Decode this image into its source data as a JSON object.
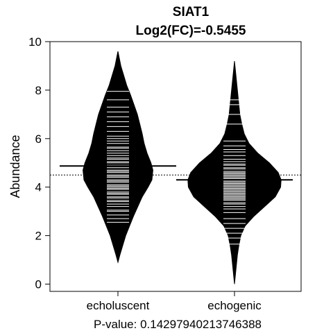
{
  "chart_data": {
    "type": "beanplot",
    "title": "SIAT1",
    "subtitle": "Log2(FC)=-0.5455",
    "xlabel": "",
    "ylabel": "Abundance",
    "ylim": [
      -0.3,
      10
    ],
    "yticks": [
      0,
      2,
      4,
      6,
      8,
      10
    ],
    "categories": [
      "echoluscent",
      "echogenic"
    ],
    "overall_mean": 4.5,
    "grid": false,
    "footer": "P-value: 0.14297940213746388",
    "beans": [
      {
        "name": "echoluscent",
        "mean": 4.87,
        "range": [
          0.9,
          9.6
        ],
        "density_profile": [
          [
            0.9,
            0.0
          ],
          [
            1.2,
            0.04
          ],
          [
            1.6,
            0.1
          ],
          [
            2.0,
            0.16
          ],
          [
            2.4,
            0.24
          ],
          [
            2.8,
            0.32
          ],
          [
            3.2,
            0.41
          ],
          [
            3.6,
            0.5
          ],
          [
            4.0,
            0.62
          ],
          [
            4.3,
            0.7
          ],
          [
            4.7,
            0.72
          ],
          [
            5.0,
            0.68
          ],
          [
            5.4,
            0.6
          ],
          [
            5.8,
            0.54
          ],
          [
            6.2,
            0.5
          ],
          [
            6.6,
            0.45
          ],
          [
            7.0,
            0.4
          ],
          [
            7.4,
            0.33
          ],
          [
            7.8,
            0.26
          ],
          [
            8.2,
            0.18
          ],
          [
            8.6,
            0.12
          ],
          [
            9.0,
            0.06
          ],
          [
            9.3,
            0.03
          ],
          [
            9.6,
            0.0
          ]
        ],
        "observations": [
          2.55,
          2.7,
          2.85,
          3.0,
          3.05,
          3.2,
          3.3,
          3.4,
          3.45,
          3.55,
          3.6,
          3.7,
          3.75,
          3.8,
          3.9,
          3.95,
          4.0,
          4.05,
          4.1,
          4.2,
          4.25,
          4.3,
          4.4,
          4.45,
          4.5,
          4.6,
          4.65,
          4.7,
          4.8,
          4.9,
          5.0,
          5.05,
          5.15,
          5.2,
          5.3,
          5.4,
          5.5,
          5.6,
          5.65,
          5.8,
          5.9,
          6.0,
          6.1,
          6.3,
          6.5,
          6.7,
          6.9,
          7.1,
          7.3,
          7.6,
          7.95
        ]
      },
      {
        "name": "echogenic",
        "mean": 4.3,
        "range": [
          0.0,
          9.2
        ],
        "density_profile": [
          [
            0.0,
            0.0
          ],
          [
            0.4,
            0.02
          ],
          [
            0.8,
            0.04
          ],
          [
            1.2,
            0.06
          ],
          [
            1.6,
            0.09
          ],
          [
            2.0,
            0.13
          ],
          [
            2.4,
            0.22
          ],
          [
            2.8,
            0.4
          ],
          [
            3.2,
            0.62
          ],
          [
            3.6,
            0.84
          ],
          [
            4.0,
            0.95
          ],
          [
            4.3,
            0.96
          ],
          [
            4.6,
            0.9
          ],
          [
            5.0,
            0.72
          ],
          [
            5.4,
            0.48
          ],
          [
            5.8,
            0.3
          ],
          [
            6.2,
            0.2
          ],
          [
            6.6,
            0.15
          ],
          [
            7.0,
            0.11
          ],
          [
            7.4,
            0.09
          ],
          [
            7.8,
            0.07
          ],
          [
            8.2,
            0.05
          ],
          [
            8.6,
            0.03
          ],
          [
            9.0,
            0.01
          ],
          [
            9.2,
            0.0
          ]
        ],
        "observations": [
          1.65,
          1.9,
          2.1,
          2.3,
          2.5,
          2.7,
          2.95,
          3.1,
          3.2,
          3.3,
          3.35,
          3.45,
          3.5,
          3.55,
          3.6,
          3.65,
          3.7,
          3.75,
          3.8,
          3.85,
          3.9,
          3.95,
          4.0,
          4.05,
          4.1,
          4.15,
          4.2,
          4.25,
          4.35,
          4.4,
          4.45,
          4.5,
          4.55,
          4.6,
          4.65,
          4.75,
          4.8,
          4.9,
          4.95,
          5.05,
          5.15,
          5.3,
          5.45,
          5.55,
          5.7,
          5.9,
          6.6,
          7.0,
          7.4,
          7.6
        ]
      }
    ]
  }
}
